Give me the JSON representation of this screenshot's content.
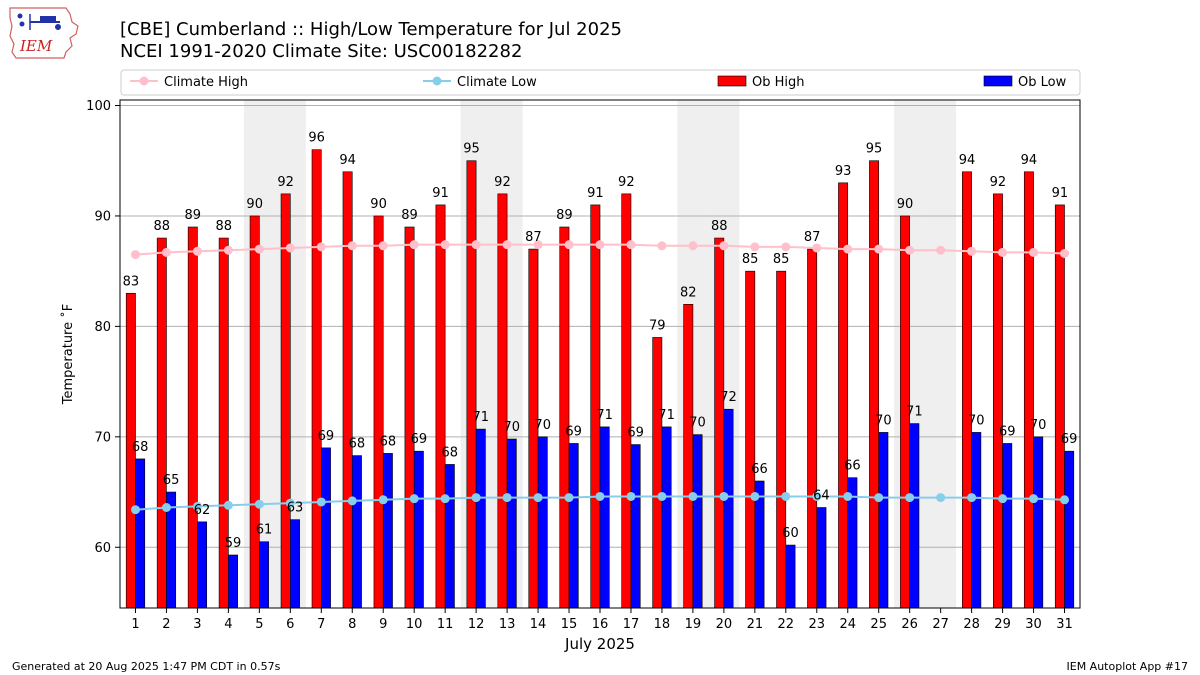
{
  "logo": {
    "text": "IEM"
  },
  "chart_data": {
    "type": "bar",
    "title": "[CBE] Cumberland :: High/Low Temperature for Jul 2025",
    "subtitle": "NCEI 1991-2020 Climate Site: USC00182282",
    "xlabel": "July 2025",
    "ylabel": "Temperature ˚F",
    "ylim": [
      54.5,
      100.5
    ],
    "yticks": [
      60,
      70,
      80,
      90,
      100
    ],
    "grid": true,
    "legend_position": "top",
    "categories": [
      "1",
      "2",
      "3",
      "4",
      "5",
      "6",
      "7",
      "8",
      "9",
      "10",
      "11",
      "12",
      "13",
      "14",
      "15",
      "16",
      "17",
      "18",
      "19",
      "20",
      "21",
      "22",
      "23",
      "24",
      "25",
      "26",
      "27",
      "28",
      "29",
      "30",
      "31"
    ],
    "shaded_days": [
      "5",
      "6",
      "12",
      "13",
      "19",
      "20",
      "26",
      "27"
    ],
    "series": [
      {
        "name": "Ob High",
        "type": "bar",
        "values": [
          83,
          88,
          89,
          88,
          90,
          92,
          96,
          94,
          90,
          89,
          91,
          95,
          92,
          87,
          89,
          91,
          92,
          79,
          82,
          88,
          85,
          85,
          87,
          93,
          95,
          90,
          null,
          94,
          92,
          94,
          91
        ],
        "labels": [
          "83",
          "88",
          "89",
          "88",
          "90",
          "92",
          "96",
          "94",
          "90",
          "89",
          "91",
          "95",
          "92",
          "87",
          "89",
          "91",
          "92",
          "79",
          "82",
          "88",
          "85",
          "85",
          "87",
          "93",
          "95",
          "90",
          "",
          "94",
          "92",
          "94",
          "91"
        ]
      },
      {
        "name": "Ob Low",
        "type": "bar",
        "values": [
          68,
          65,
          62.3,
          59.3,
          60.5,
          62.5,
          69,
          68.3,
          68.5,
          68.7,
          67.5,
          70.7,
          69.8,
          70,
          69.4,
          70.9,
          69.3,
          70.9,
          70.2,
          72.5,
          66,
          60.2,
          63.6,
          66.3,
          70.4,
          71.2,
          null,
          70.4,
          69.4,
          70,
          68.7
        ],
        "labels": [
          "68",
          "65",
          "62",
          "59",
          "61",
          "63",
          "69",
          "68",
          "68",
          "69",
          "68",
          "71",
          "70",
          "70",
          "69",
          "71",
          "69",
          "71",
          "70",
          "72",
          "66",
          "60",
          "64",
          "66",
          "70",
          "71",
          "",
          "70",
          "69",
          "70",
          "69"
        ]
      },
      {
        "name": "Climate High",
        "type": "line",
        "values": [
          86.5,
          86.7,
          86.8,
          86.9,
          87.0,
          87.1,
          87.2,
          87.3,
          87.3,
          87.4,
          87.4,
          87.4,
          87.4,
          87.4,
          87.4,
          87.4,
          87.4,
          87.3,
          87.3,
          87.3,
          87.2,
          87.2,
          87.1,
          87.0,
          87.0,
          86.9,
          86.9,
          86.8,
          86.7,
          86.7,
          86.6
        ]
      },
      {
        "name": "Climate Low",
        "type": "line",
        "values": [
          63.4,
          63.6,
          63.7,
          63.8,
          63.9,
          64.0,
          64.1,
          64.2,
          64.3,
          64.4,
          64.4,
          64.5,
          64.5,
          64.5,
          64.5,
          64.6,
          64.6,
          64.6,
          64.6,
          64.6,
          64.6,
          64.6,
          64.6,
          64.6,
          64.5,
          64.5,
          64.5,
          64.5,
          64.4,
          64.4,
          64.3
        ]
      }
    ]
  },
  "legend": {
    "items": [
      {
        "label": "Climate High",
        "kind": "line",
        "color": "#ffc0cb"
      },
      {
        "label": "Climate Low",
        "kind": "line",
        "color": "#87ceeb"
      },
      {
        "label": "Ob High",
        "kind": "bar",
        "color": "#ff0000"
      },
      {
        "label": "Ob Low",
        "kind": "bar",
        "color": "#0000ff"
      }
    ]
  },
  "colors": {
    "ob_high": "#ff0000",
    "ob_low": "#0000ff",
    "climate_high": "#ffc0cb",
    "climate_low": "#87ceeb",
    "weekend_shade": "#efefef",
    "grid": "#b0b0b0"
  },
  "footer": {
    "left": "Generated at 20 Aug 2025 1:47 PM CDT in 0.57s",
    "right": "IEM Autoplot App #17"
  }
}
